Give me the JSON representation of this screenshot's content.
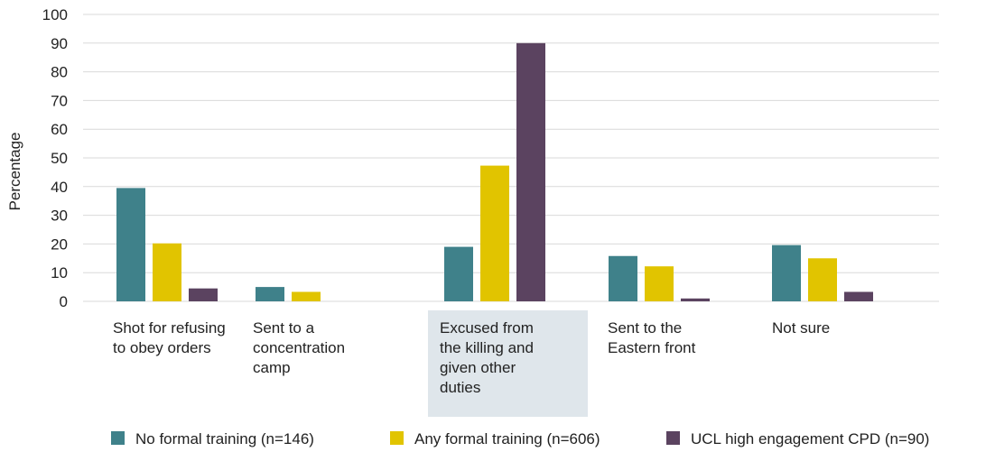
{
  "chart_data": {
    "type": "bar",
    "ylabel": "Percentage",
    "ylim": [
      0,
      100
    ],
    "yticks": [
      0,
      10,
      20,
      30,
      40,
      50,
      60,
      70,
      80,
      90,
      100
    ],
    "grid": true,
    "legend_position": "bottom",
    "highlighted_category_index": 2,
    "highlight_color": "#dfe6eb",
    "categories": [
      [
        "Shot for refusing",
        "to obey orders"
      ],
      [
        "Sent to a",
        "concentration",
        "camp"
      ],
      [
        "Excused from",
        "the killing and",
        "given other",
        "duties"
      ],
      [
        "Sent to the",
        "Eastern front"
      ],
      [
        "Not sure"
      ]
    ],
    "series": [
      {
        "name": "No formal training (n=146)",
        "color": "#3f818a",
        "values": [
          39.5,
          5,
          19,
          15.8,
          19.6
        ]
      },
      {
        "name": "Any formal training (n=606)",
        "color": "#e1c400",
        "values": [
          20.2,
          3.3,
          47.3,
          12.2,
          15
        ]
      },
      {
        "name": "UCL high engagement CPD (n=90)",
        "color": "#5b4360",
        "values": [
          4.5,
          0,
          90,
          1,
          3.3
        ]
      }
    ]
  }
}
